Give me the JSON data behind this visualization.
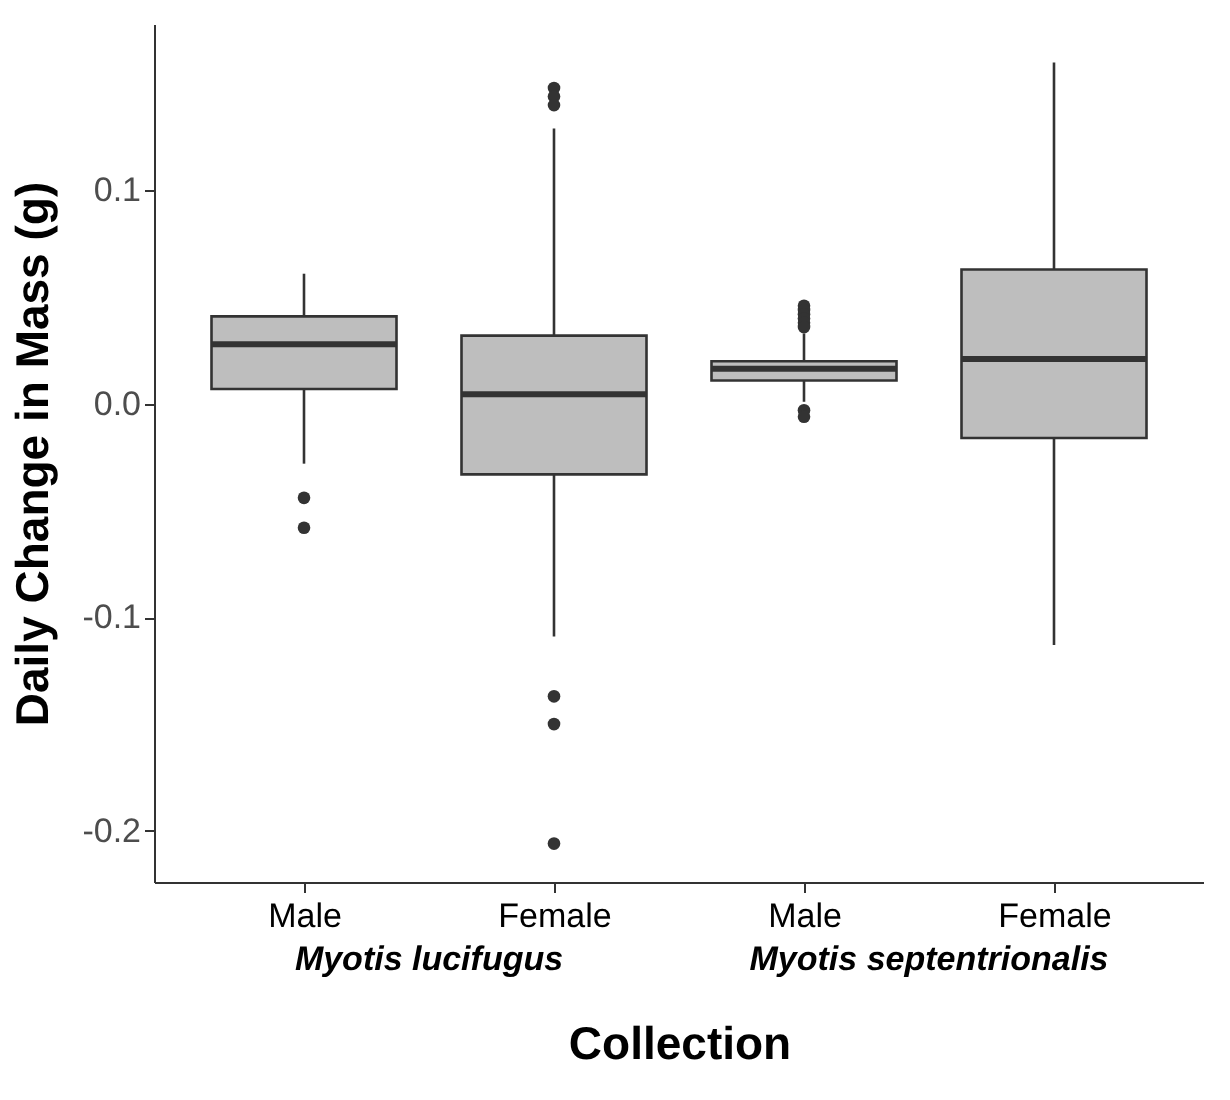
{
  "chart_data": {
    "type": "box",
    "xlabel": "Collection",
    "ylabel": "Daily Change in Mass (g)",
    "categories": [
      "Male",
      "Female",
      "Male",
      "Female"
    ],
    "annotations": [
      "Myotis lucifugus",
      "Myotis septentrionalis"
    ],
    "series": [
      {
        "color": "#bebebe",
        "boxes": [
          {
            "low": -0.028,
            "q1": 0.007,
            "median": 0.028,
            "q3": 0.041,
            "high": 0.061,
            "outliers": [
              -0.044,
              -0.058
            ]
          },
          {
            "low": -0.109,
            "q1": -0.033,
            "median": 0.0045,
            "q3": 0.032,
            "high": 0.129,
            "outliers": [
              0.148,
              0.144,
              0.14,
              -0.137,
              -0.15,
              -0.206
            ]
          },
          {
            "low": 0.001,
            "q1": 0.011,
            "median": 0.0165,
            "q3": 0.02,
            "high": 0.033,
            "outliers": [
              0.046,
              0.044,
              0.042,
              0.04,
              0.038,
              0.036,
              -0.003,
              -0.006
            ]
          },
          {
            "low": -0.113,
            "q1": -0.016,
            "median": 0.021,
            "q3": 0.063,
            "high": 0.16
          }
        ]
      }
    ],
    "ylim": [
      -0.224,
      0.178
    ],
    "yticks": [
      -0.2,
      -0.1,
      {
        "value": 0,
        "label": "0.0"
      },
      0.1
    ]
  }
}
